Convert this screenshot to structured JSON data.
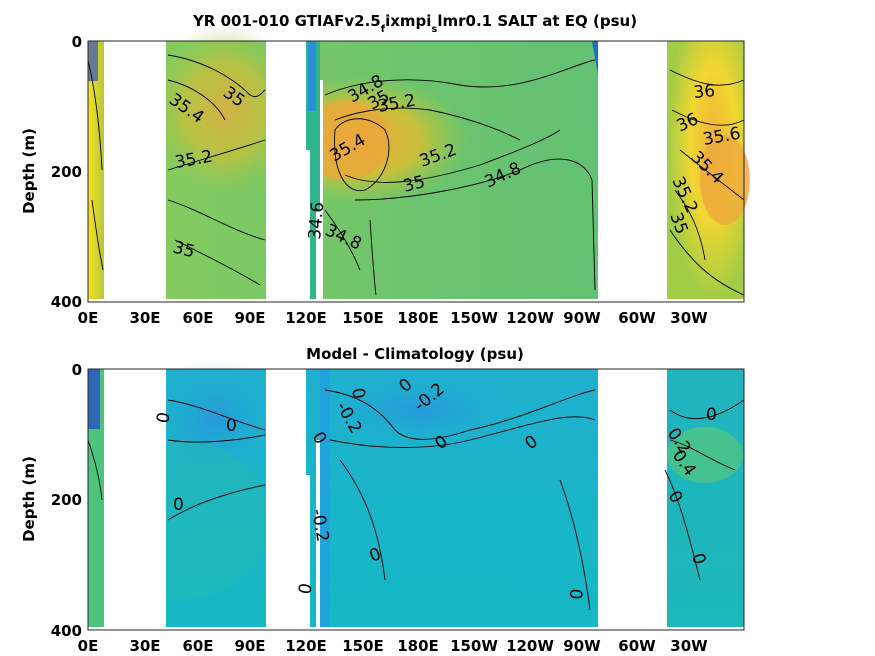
{
  "chart_data": [
    {
      "type": "heatmap",
      "title_parts": [
        "YR 001-010 GTIAFv2.5",
        "f",
        "ixmpi",
        "s",
        "lmr0.1 SALT at EQ (psu)"
      ],
      "ylabel": "Depth (m)",
      "x_ticks": [
        "0E",
        "30E",
        "60E",
        "90E",
        "120E",
        "150E",
        "180E",
        "150W",
        "120W",
        "90W",
        "60W",
        "30W"
      ],
      "y_ticks": [
        "0",
        "200",
        "400"
      ],
      "ylim": [
        400,
        0
      ],
      "y_reversed": true,
      "contour_labels": [
        "35",
        "35.4",
        "35.2",
        "35",
        "35.4",
        "34.8",
        "35",
        "35.2",
        "35.2",
        "35",
        "34.8",
        "34.6",
        "34.8",
        "36",
        "36",
        "35.6",
        "35.4",
        "35.2",
        "35"
      ]
    },
    {
      "type": "heatmap",
      "title": "Model - Climatology (psu)",
      "ylabel": "Depth (m)",
      "x_ticks": [
        "0E",
        "30E",
        "60E",
        "90E",
        "120E",
        "150E",
        "180E",
        "150W",
        "120W",
        "90W",
        "60W",
        "30W"
      ],
      "y_ticks": [
        "0",
        "200",
        "400"
      ],
      "ylim": [
        400,
        0
      ],
      "y_reversed": true,
      "contour_labels": [
        "0",
        "0",
        "0",
        "0",
        "0",
        "-0.2",
        "-0.2",
        "0",
        "0",
        "-0.2",
        "0",
        "0",
        "0",
        "0",
        "0",
        "0.2",
        "0.4",
        "0",
        "0"
      ]
    }
  ],
  "colors": {
    "panel1_base": "#7cc96a",
    "panel1_warm": "#e8b43c",
    "panel1_hot": "#f2e51c",
    "panel1_fresh": "#36b38c",
    "panel2_base": "#1cb6c8",
    "panel2_pos": "#4fc486",
    "panel2_neg": "#2a8fd6",
    "extreme_low": "#3a2a9c"
  }
}
